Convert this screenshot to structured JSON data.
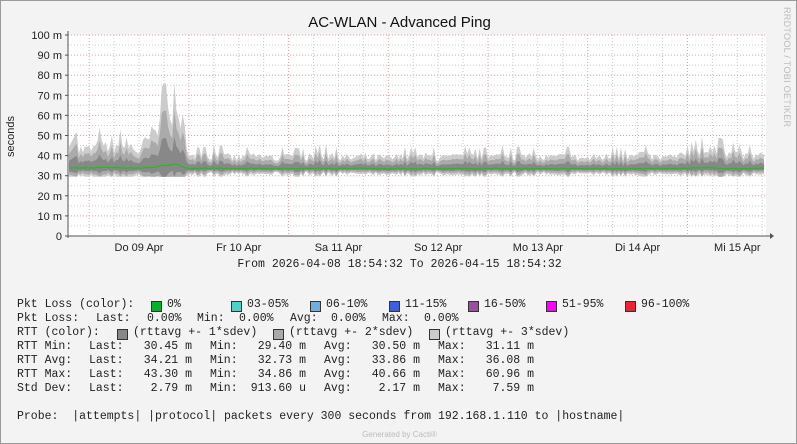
{
  "chart_data": {
    "type": "area",
    "title": "AC-WLAN - Advanced Ping",
    "ylabel": "seconds",
    "ylim": [
      0,
      0.1
    ],
    "yticks": [
      "0",
      "10 m",
      "20 m",
      "30 m",
      "40 m",
      "50 m",
      "60 m",
      "70 m",
      "80 m",
      "90 m",
      "100 m"
    ],
    "xlim": [
      "2026-04-08T18:54:32",
      "2026-04-15T18:54:32"
    ],
    "xticks": [
      {
        "t": "2026-04-09T12:00",
        "label": "Do 09 Apr"
      },
      {
        "t": "2026-04-10T12:00",
        "label": "Fr 10 Apr"
      },
      {
        "t": "2026-04-11T12:00",
        "label": "Sa 11 Apr"
      },
      {
        "t": "2026-04-12T12:00",
        "label": "So 12 Apr"
      },
      {
        "t": "2026-04-13T12:00",
        "label": "Mo 13 Apr"
      },
      {
        "t": "2026-04-14T12:00",
        "label": "Di 14 Apr"
      },
      {
        "t": "2026-04-15T12:00",
        "label": "Mi 15 Apr"
      }
    ],
    "grid": true,
    "series_note_units": "ms",
    "time": [
      "2026-04-08T21:00",
      "2026-04-09T00:00",
      "2026-04-09T03:00",
      "2026-04-09T06:00",
      "2026-04-09T09:00",
      "2026-04-09T12:00",
      "2026-04-09T15:00",
      "2026-04-09T18:00",
      "2026-04-09T21:00",
      "2026-04-10T00:00",
      "2026-04-10T03:00",
      "2026-04-10T06:00",
      "2026-04-10T09:00",
      "2026-04-10T12:00",
      "2026-04-10T15:00",
      "2026-04-10T18:00",
      "2026-04-10T21:00",
      "2026-04-11T00:00",
      "2026-04-11T03:00",
      "2026-04-11T06:00",
      "2026-04-11T09:00",
      "2026-04-11T12:00",
      "2026-04-11T15:00",
      "2026-04-11T18:00",
      "2026-04-11T21:00",
      "2026-04-12T00:00",
      "2026-04-12T03:00",
      "2026-04-12T06:00",
      "2026-04-12T09:00",
      "2026-04-12T12:00",
      "2026-04-12T15:00",
      "2026-04-12T18:00",
      "2026-04-12T21:00",
      "2026-04-13T00:00",
      "2026-04-13T03:00",
      "2026-04-13T06:00",
      "2026-04-13T09:00",
      "2026-04-13T12:00",
      "2026-04-13T15:00",
      "2026-04-13T18:00",
      "2026-04-13T21:00",
      "2026-04-14T00:00",
      "2026-04-14T03:00",
      "2026-04-14T06:00",
      "2026-04-14T09:00",
      "2026-04-14T12:00",
      "2026-04-14T15:00",
      "2026-04-14T18:00",
      "2026-04-14T21:00",
      "2026-04-15T00:00",
      "2026-04-15T03:00",
      "2026-04-15T06:00",
      "2026-04-15T09:00",
      "2026-04-15T12:00",
      "2026-04-15T15:00",
      "2026-04-15T18:00"
    ],
    "series": [
      {
        "name": "rttavg",
        "color": "#22bb22",
        "values": [
          33.8,
          33.9,
          34.0,
          34.1,
          33.9,
          33.8,
          34.0,
          35.2,
          35.5,
          33.6,
          33.5,
          33.7,
          33.6,
          33.5,
          33.7,
          33.6,
          33.5,
          33.6,
          33.5,
          33.6,
          33.7,
          33.5,
          33.6,
          33.6,
          33.5,
          33.4,
          33.6,
          33.5,
          33.6,
          33.5,
          33.5,
          33.6,
          33.4,
          33.5,
          33.6,
          33.5,
          33.6,
          33.5,
          33.4,
          33.6,
          33.5,
          33.5,
          33.6,
          33.5,
          33.4,
          33.5,
          33.6,
          33.5,
          33.6,
          33.7,
          34.0,
          33.8,
          33.6,
          33.5,
          33.6,
          33.7
        ]
      },
      {
        "name": "sdev",
        "values": [
          3.5,
          3.5,
          4.0,
          3.0,
          4.5,
          3.2,
          6.0,
          8.0,
          8.0,
          2.2,
          2.0,
          2.3,
          2.1,
          2.0,
          2.2,
          2.3,
          2.0,
          2.1,
          2.0,
          2.2,
          2.4,
          2.1,
          2.0,
          2.2,
          2.1,
          2.0,
          2.2,
          2.1,
          2.3,
          2.0,
          2.1,
          2.2,
          2.0,
          2.1,
          2.3,
          2.1,
          2.2,
          2.0,
          2.1,
          2.2,
          2.1,
          2.0,
          2.3,
          2.2,
          2.0,
          2.5,
          2.2,
          2.1,
          2.2,
          2.3,
          3.0,
          3.2,
          2.8,
          2.4,
          2.3,
          2.2
        ]
      }
    ]
  },
  "range_text": "From 2026-04-08 18:54:32 To 2026-04-15 18:54:32",
  "side_text": "RRDTOOL / TOBI OETIKER",
  "legend": {
    "pkt_loss_color_label": "Pkt Loss (color):",
    "loss_items": [
      {
        "label": "0%",
        "color": "#00b22c"
      },
      {
        "label": "03-05%",
        "color": "#4ed1c8"
      },
      {
        "label": "06-10%",
        "color": "#6eaee6"
      },
      {
        "label": "11-15%",
        "color": "#3c5fe0"
      },
      {
        "label": "16-50%",
        "color": "#9a4fa3"
      },
      {
        "label": "51-95%",
        "color": "#ff00ff"
      },
      {
        "label": "96-100%",
        "color": "#ee2233"
      }
    ],
    "pkt_loss": {
      "label": "Pkt Loss:",
      "last_label": "Last:",
      "last": "0.00%",
      "min_label": "Min:",
      "min": "0.00%",
      "avg_label": "Avg:",
      "avg": "0.00%",
      "max_label": "Max:",
      "max": "0.00%"
    },
    "rtt_color_label": "RTT (color):",
    "rtt_items": [
      {
        "label": "(rttavg +- 1*sdev)",
        "color": "#888888"
      },
      {
        "label": "(rttavg +- 2*sdev)",
        "color": "#aaaaaa"
      },
      {
        "label": "(rttavg +- 3*sdev)",
        "color": "#cccccc"
      }
    ],
    "stats": [
      {
        "label": "RTT Min:",
        "last_label": "Last:",
        "last": "30.45 m",
        "min_label": "Min:",
        "min": "29.40 m",
        "avg_label": "Avg:",
        "avg": "30.50 m",
        "max_label": "Max:",
        "max": "31.11 m"
      },
      {
        "label": "RTT Avg:",
        "last_label": "Last:",
        "last": "34.21 m",
        "min_label": "Min:",
        "min": "32.73 m",
        "avg_label": "Avg:",
        "avg": "33.86 m",
        "max_label": "Max:",
        "max": "36.08 m"
      },
      {
        "label": "RTT Max:",
        "last_label": "Last:",
        "last": "43.30 m",
        "min_label": "Min:",
        "min": "34.86 m",
        "avg_label": "Avg:",
        "avg": "40.66 m",
        "max_label": "Max:",
        "max": "60.96 m"
      },
      {
        "label": "Std Dev:",
        "last_label": "Last:",
        "last": "2.79 m",
        "min_label": "Min:",
        "min": "913.60 u",
        "avg_label": "Avg:",
        "avg": "2.17 m",
        "max_label": "Max:",
        "max": "7.59 m"
      }
    ],
    "probe": "Probe:  |attempts| |protocol| packets every 300 seconds from 192.168.1.110 to |hostname|"
  },
  "generated": "Generated by Cacti®"
}
